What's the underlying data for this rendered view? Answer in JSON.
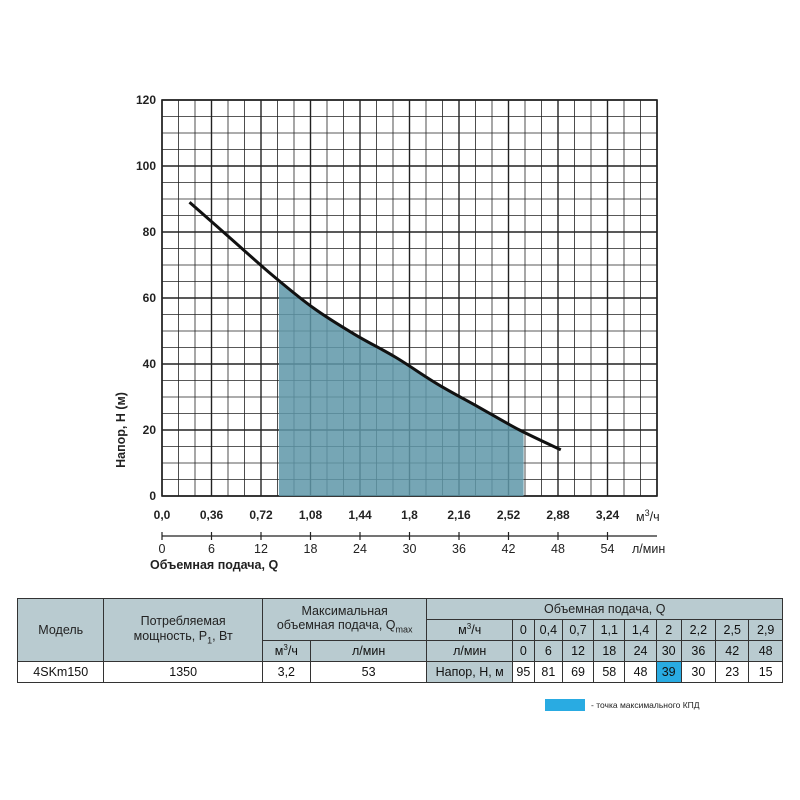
{
  "chart_data": {
    "type": "line",
    "xlabel": "Объемная подача, Q",
    "ylabel": "Напор, H (м)",
    "x_unit": "м³/ч",
    "x2_unit": "л/мин",
    "xlim": [
      0,
      3.6
    ],
    "ylim": [
      0,
      120
    ],
    "grid": true,
    "x_ticks": [
      "0,0",
      "0,36",
      "0,72",
      "1,08",
      "1,44",
      "1,8",
      "2,16",
      "2,52",
      "2,88",
      "3,24"
    ],
    "x_tick_values": [
      0,
      0.36,
      0.72,
      1.08,
      1.44,
      1.8,
      2.16,
      2.52,
      2.88,
      3.24
    ],
    "x2_ticks": [
      "0",
      "6",
      "12",
      "18",
      "24",
      "30",
      "36",
      "42",
      "48",
      "54"
    ],
    "y_ticks": [
      "0",
      "20",
      "40",
      "60",
      "80",
      "100",
      "120"
    ],
    "y_tick_values": [
      0,
      20,
      40,
      60,
      80,
      100,
      120
    ],
    "series": [
      {
        "x": [
          0.2,
          0.5,
          0.8,
          1.1,
          1.4,
          1.7,
          2.0,
          2.3,
          2.6,
          2.9
        ],
        "y": [
          89,
          78,
          67,
          57,
          49,
          42,
          34,
          27,
          20,
          14
        ]
      }
    ],
    "shaded_range": [
      0.85,
      2.63
    ],
    "colors": {
      "curve": "#111111",
      "fill": "#5e97a8",
      "grid": "#222222"
    }
  },
  "table": {
    "h_model": "Модель",
    "h_power_1": "Потребляемая",
    "h_power_2": "мощность, P",
    "h_power_sub": "1",
    "h_power_3": ", Вт",
    "h_qmax_1": "Максимальная",
    "h_qmax_2": "объемная подача, Q",
    "h_qmax_sub": "max",
    "h_flow": "Объемная подача, Q",
    "unit_m3": "м",
    "unit_m3_sup": "3",
    "unit_m3_rest": "/ч",
    "unit_lmin": "л/мин",
    "head_label": "Напор, Н, м",
    "flow_m3h": [
      "0",
      "0,4",
      "0,7",
      "1,1",
      "1,4",
      "2",
      "2,2",
      "2,5",
      "2,9"
    ],
    "flow_lmin": [
      "0",
      "6",
      "12",
      "18",
      "24",
      "30",
      "36",
      "42",
      "48"
    ],
    "head": [
      "95",
      "81",
      "69",
      "58",
      "48",
      "39",
      "30",
      "23",
      "15"
    ],
    "model": "4SKm150",
    "power": "1350",
    "qmax_m3h": "3,2",
    "qmax_lmin": "53",
    "highlight_index": 5
  },
  "legend": {
    "text": "- точка максимального КПД",
    "color": "#29abe2"
  }
}
